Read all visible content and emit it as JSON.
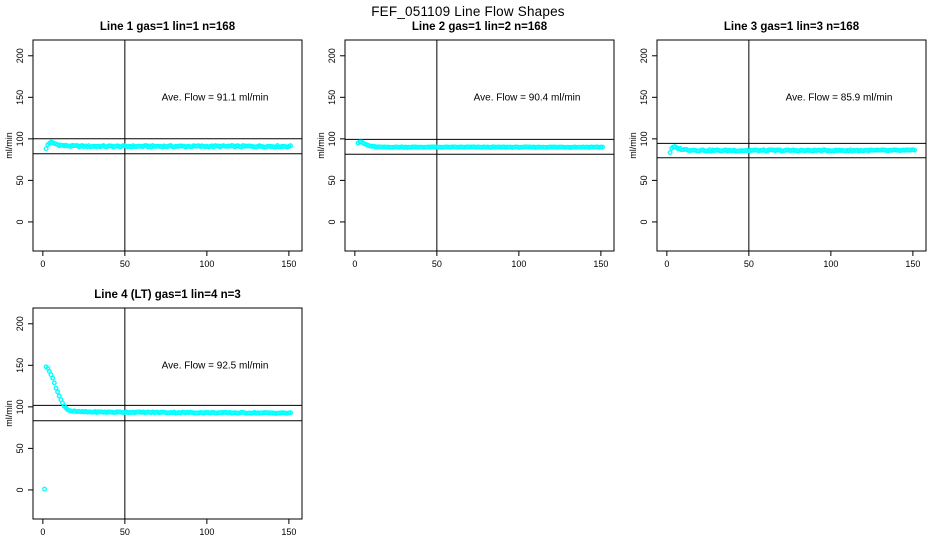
{
  "main": {
    "title": "FEF_051109  Line Flow Shapes"
  },
  "colors": {
    "marker": "#00FFFF",
    "axis": "#000000",
    "background": "#FFFFFF"
  },
  "chart_data": [
    {
      "type": "scatter",
      "title": "Line 1 gas=1 lin=1 n=168",
      "ylabel": "ml/min",
      "xlabel": "",
      "ave_flow_ml_min": 91.1,
      "annotation": "Ave. Flow =  91.1  ml/min",
      "annotation_pos": {
        "x": 105,
        "y": 150
      },
      "x_ticks": [
        0,
        50,
        100,
        150
      ],
      "y_ticks": [
        0,
        50,
        100,
        150,
        200
      ],
      "xlim": [
        -6,
        158
      ],
      "ylim": [
        -35,
        219
      ],
      "grid": false,
      "vline_x": 50,
      "hlines": [
        100.2,
        82.0
      ],
      "series": [
        {
          "name": "flow",
          "marker": "open-circle",
          "color": "#00FFFF",
          "x_start": 2,
          "x_end": 151,
          "x_step": 1,
          "anchors": [
            [
              2,
              88
            ],
            [
              3,
              93
            ],
            [
              4,
              95
            ],
            [
              5,
              95.5
            ],
            [
              6,
              95
            ],
            [
              7,
              94.5
            ],
            [
              9,
              93
            ],
            [
              12,
              92
            ],
            [
              16,
              91.5
            ],
            [
              25,
              91
            ],
            [
              151,
              91
            ]
          ],
          "jitter": 0.9,
          "extra_points": []
        }
      ]
    },
    {
      "type": "scatter",
      "title": "Line 2 gas=1 lin=2 n=168",
      "ylabel": "ml/min",
      "xlabel": "",
      "ave_flow_ml_min": 90.4,
      "annotation": "Ave. Flow =  90.4  ml/min",
      "annotation_pos": {
        "x": 105,
        "y": 150
      },
      "x_ticks": [
        0,
        50,
        100,
        150
      ],
      "y_ticks": [
        0,
        50,
        100,
        150,
        200
      ],
      "xlim": [
        -6,
        158
      ],
      "ylim": [
        -35,
        219
      ],
      "grid": false,
      "vline_x": 50,
      "hlines": [
        99.4,
        81.4
      ],
      "series": [
        {
          "name": "flow",
          "marker": "open-circle",
          "color": "#00FFFF",
          "x_start": 2,
          "x_end": 151,
          "x_step": 1,
          "anchors": [
            [
              2,
              95
            ],
            [
              3,
              96.5
            ],
            [
              4,
              96
            ],
            [
              5,
              95
            ],
            [
              7,
              93
            ],
            [
              9,
              91.5
            ],
            [
              12,
              90.5
            ],
            [
              16,
              90
            ],
            [
              151,
              90
            ]
          ],
          "jitter": 0.4,
          "extra_points": []
        }
      ]
    },
    {
      "type": "scatter",
      "title": "Line 3 gas=1 lin=3 n=168",
      "ylabel": "ml/min",
      "xlabel": "",
      "ave_flow_ml_min": 85.9,
      "annotation": "Ave. Flow =  85.9  ml/min",
      "annotation_pos": {
        "x": 105,
        "y": 150
      },
      "x_ticks": [
        0,
        50,
        100,
        150
      ],
      "y_ticks": [
        0,
        50,
        100,
        150,
        200
      ],
      "xlim": [
        -6,
        158
      ],
      "ylim": [
        -35,
        219
      ],
      "grid": false,
      "vline_x": 50,
      "hlines": [
        94.5,
        77.3
      ],
      "series": [
        {
          "name": "flow",
          "marker": "open-circle",
          "color": "#00FFFF",
          "x_start": 2,
          "x_end": 151,
          "x_step": 1,
          "anchors": [
            [
              2,
              84
            ],
            [
              3,
              88
            ],
            [
              4,
              90
            ],
            [
              5,
              90
            ],
            [
              6,
              89
            ],
            [
              8,
              88
            ],
            [
              11,
              87
            ],
            [
              16,
              86.5
            ],
            [
              25,
              86
            ],
            [
              151,
              86
            ]
          ],
          "jitter": 0.9,
          "extra_points": []
        }
      ]
    },
    {
      "type": "scatter",
      "title": "Line 4 (LT) gas=1 lin=4 n=3",
      "ylabel": "ml/min",
      "xlabel": "",
      "ave_flow_ml_min": 92.5,
      "annotation": "Ave. Flow =  92.5  ml/min",
      "annotation_pos": {
        "x": 105,
        "y": 150
      },
      "x_ticks": [
        0,
        50,
        100,
        150
      ],
      "y_ticks": [
        0,
        50,
        100,
        150,
        200
      ],
      "xlim": [
        -6,
        158
      ],
      "ylim": [
        -35,
        219
      ],
      "grid": false,
      "vline_x": 50,
      "hlines": [
        101.8,
        83.3
      ],
      "series": [
        {
          "name": "flow",
          "marker": "open-circle",
          "color": "#00FFFF",
          "x_start": 2,
          "x_end": 151,
          "x_step": 1,
          "anchors": [
            [
              2,
              148
            ],
            [
              3,
              147
            ],
            [
              4,
              143
            ],
            [
              5,
              139
            ],
            [
              6,
              134
            ],
            [
              7,
              129
            ],
            [
              8,
              123
            ],
            [
              9,
              118
            ],
            [
              10,
              113
            ],
            [
              11,
              108.5
            ],
            [
              12,
              104.5
            ],
            [
              13,
              101.5
            ],
            [
              14,
              99
            ],
            [
              15,
              97
            ],
            [
              16,
              96
            ],
            [
              17,
              95.2
            ],
            [
              18,
              94.8
            ],
            [
              20,
              94.3
            ],
            [
              24,
              94
            ],
            [
              30,
              93.8
            ],
            [
              50,
              93.5
            ],
            [
              100,
              93
            ],
            [
              151,
              92.5
            ]
          ],
          "jitter": 0.6,
          "extra_points": [
            [
              1,
              1
            ]
          ]
        }
      ]
    }
  ]
}
